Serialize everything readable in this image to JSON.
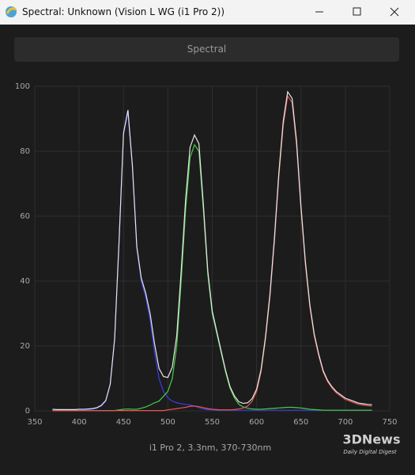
{
  "window": {
    "title": "Spectral: Unknown (Vision L WG (i1 Pro 2))",
    "button": "Spectral"
  },
  "watermark": {
    "brand": "3DNews",
    "tagline": "Daily Digital Digest"
  },
  "chart_data": {
    "type": "line",
    "xlabel": "i1 Pro 2, 3.3nm, 370-730nm",
    "x": [
      370,
      375,
      380,
      385,
      390,
      395,
      400,
      405,
      410,
      415,
      420,
      425,
      430,
      435,
      440,
      445,
      450,
      455,
      460,
      465,
      470,
      475,
      480,
      485,
      490,
      495,
      500,
      505,
      510,
      515,
      520,
      525,
      530,
      535,
      540,
      545,
      550,
      555,
      560,
      565,
      570,
      575,
      580,
      585,
      590,
      595,
      600,
      605,
      610,
      615,
      620,
      625,
      630,
      635,
      640,
      645,
      650,
      655,
      660,
      665,
      670,
      675,
      680,
      685,
      690,
      695,
      700,
      705,
      710,
      715,
      720,
      725,
      730
    ],
    "series": [
      {
        "color": "#3c3ce6",
        "values": [
          0.3,
          0.2,
          0.2,
          0.2,
          0.2,
          0.2,
          0.3,
          0.3,
          0.4,
          0.5,
          0.8,
          1.5,
          3,
          8,
          22,
          52,
          85,
          92,
          75,
          50,
          40,
          35,
          28,
          18,
          10,
          6,
          4,
          3,
          2.5,
          2.2,
          2,
          1.8,
          1.5,
          1,
          0.6,
          0.4,
          0.3,
          0.2,
          0.2,
          0.2,
          0.2,
          0.2,
          0.2,
          0.2,
          0.2,
          0.2,
          0.2,
          0.2,
          0.2,
          0.2,
          0.2,
          0.2,
          0.2,
          0.2,
          0.2,
          0.2,
          0.2,
          0.2,
          0.2,
          0.2,
          0.2,
          0.2,
          0.2,
          0.2,
          0.2,
          0.2,
          0.2,
          0.2,
          0.2,
          0.2,
          0.2,
          0.2,
          0.2
        ]
      },
      {
        "color": "#44d044",
        "values": [
          0.1,
          0.1,
          0.1,
          0.1,
          0.1,
          0.1,
          0.1,
          0.1,
          0.1,
          0.1,
          0.1,
          0.1,
          0.1,
          0.1,
          0.1,
          0.3,
          0.5,
          0.6,
          0.5,
          0.5,
          0.8,
          1.2,
          1.8,
          2.5,
          3,
          4.5,
          6,
          10,
          20,
          40,
          62,
          78,
          82,
          80,
          62,
          42,
          30,
          24,
          18,
          12,
          7,
          4,
          2,
          1.2,
          0.8,
          0.6,
          0.5,
          0.5,
          0.6,
          0.7,
          0.8,
          0.9,
          1,
          1.1,
          1.1,
          1,
          0.9,
          0.7,
          0.5,
          0.4,
          0.3,
          0.2,
          0.2,
          0.2,
          0.2,
          0.2,
          0.2,
          0.2,
          0.2,
          0.2,
          0.2,
          0.2,
          0.2
        ]
      },
      {
        "color": "#e85555",
        "values": [
          0.1,
          0.1,
          0.1,
          0.1,
          0.1,
          0.1,
          0.1,
          0.1,
          0.1,
          0.1,
          0.1,
          0.1,
          0.1,
          0.1,
          0.1,
          0.1,
          0.1,
          0.1,
          0.1,
          0.1,
          0.1,
          0.1,
          0.1,
          0.1,
          0.1,
          0.1,
          0.3,
          0.5,
          0.7,
          0.9,
          1.1,
          1.4,
          1.5,
          1.3,
          1,
          0.7,
          0.5,
          0.4,
          0.3,
          0.3,
          0.3,
          0.4,
          0.6,
          0.9,
          1.5,
          3,
          6,
          12,
          22,
          35,
          52,
          72,
          88,
          97,
          95,
          82,
          62,
          45,
          32,
          23,
          17,
          12,
          9,
          7,
          5.5,
          4.5,
          3.5,
          3,
          2.5,
          2,
          1.8,
          1.6,
          1.5
        ]
      },
      {
        "color": "#e6e6e6",
        "values": [
          0.5,
          0.4,
          0.4,
          0.4,
          0.4,
          0.4,
          0.5,
          0.5,
          0.6,
          0.7,
          1,
          1.7,
          3.2,
          8.2,
          22.2,
          52.4,
          85.6,
          92.7,
          75.6,
          50.6,
          40.9,
          36.3,
          29.9,
          20.6,
          13.1,
          10.6,
          10.3,
          13.5,
          23.2,
          43.1,
          65.1,
          81.2,
          85,
          82.3,
          63.6,
          43.1,
          30.8,
          24.6,
          18.5,
          12.5,
          7.5,
          4.6,
          2.8,
          2.3,
          2.5,
          3.8,
          6.7,
          12.7,
          22.8,
          35.9,
          53,
          73.1,
          89.2,
          98.3,
          96.3,
          83.2,
          63.1,
          45.9,
          32.7,
          23.6,
          17.5,
          12.4,
          9.4,
          7.4,
          5.9,
          4.9,
          3.9,
          3.4,
          2.9,
          2.4,
          2.2,
          2,
          1.9
        ]
      }
    ],
    "xlim": [
      350,
      750
    ],
    "xticks": [
      350,
      400,
      450,
      500,
      550,
      600,
      650,
      700,
      750
    ],
    "ylim": [
      0,
      100
    ],
    "yticks": [
      0,
      20,
      40,
      60,
      80,
      100
    ],
    "grid": true
  }
}
